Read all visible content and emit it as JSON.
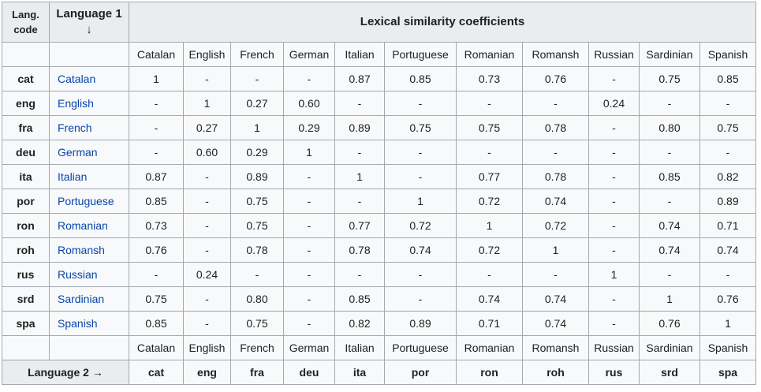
{
  "colors": {
    "header_bg": "#eaecf0",
    "cell_bg": "#f8f9fa",
    "border": "#a2a9b1",
    "link": "#0645ad",
    "text": "#202122"
  },
  "table": {
    "corner_header": {
      "line1": "Lang.",
      "line2": "code"
    },
    "language1_header": {
      "label": "Language 1",
      "arrow": "↓"
    },
    "coefficients_header": "Lexical similarity coefficients",
    "columns": [
      "Catalan",
      "English",
      "French",
      "German",
      "Italian",
      "Portuguese",
      "Romanian",
      "Romansh",
      "Russian",
      "Sardinian",
      "Spanish"
    ],
    "codes": [
      "cat",
      "eng",
      "fra",
      "deu",
      "ita",
      "por",
      "ron",
      "roh",
      "rus",
      "srd",
      "spa"
    ],
    "rows": [
      {
        "code": "cat",
        "language": "Catalan",
        "values": [
          "1",
          "-",
          "-",
          "-",
          "0.87",
          "0.85",
          "0.73",
          "0.76",
          "-",
          "0.75",
          "0.85"
        ]
      },
      {
        "code": "eng",
        "language": "English",
        "values": [
          "-",
          "1",
          "0.27",
          "0.60",
          "-",
          "-",
          "-",
          "-",
          "0.24",
          "-",
          "-"
        ]
      },
      {
        "code": "fra",
        "language": "French",
        "values": [
          "-",
          "0.27",
          "1",
          "0.29",
          "0.89",
          "0.75",
          "0.75",
          "0.78",
          "-",
          "0.80",
          "0.75"
        ]
      },
      {
        "code": "deu",
        "language": "German",
        "values": [
          "-",
          "0.60",
          "0.29",
          "1",
          "-",
          "-",
          "-",
          "-",
          "-",
          "-",
          "-"
        ]
      },
      {
        "code": "ita",
        "language": "Italian",
        "values": [
          "0.87",
          "-",
          "0.89",
          "-",
          "1",
          "-",
          "0.77",
          "0.78",
          "-",
          "0.85",
          "0.82"
        ]
      },
      {
        "code": "por",
        "language": "Portuguese",
        "values": [
          "0.85",
          "-",
          "0.75",
          "-",
          "-",
          "1",
          "0.72",
          "0.74",
          "-",
          "-",
          "0.89"
        ]
      },
      {
        "code": "ron",
        "language": "Romanian",
        "values": [
          "0.73",
          "-",
          "0.75",
          "-",
          "0.77",
          "0.72",
          "1",
          "0.72",
          "-",
          "0.74",
          "0.71"
        ]
      },
      {
        "code": "roh",
        "language": "Romansh",
        "values": [
          "0.76",
          "-",
          "0.78",
          "-",
          "0.78",
          "0.74",
          "0.72",
          "1",
          "-",
          "0.74",
          "0.74"
        ]
      },
      {
        "code": "rus",
        "language": "Russian",
        "values": [
          "-",
          "0.24",
          "-",
          "-",
          "-",
          "-",
          "-",
          "-",
          "1",
          "-",
          "-"
        ]
      },
      {
        "code": "srd",
        "language": "Sardinian",
        "values": [
          "0.75",
          "-",
          "0.80",
          "-",
          "0.85",
          "-",
          "0.74",
          "0.74",
          "-",
          "1",
          "0.76"
        ]
      },
      {
        "code": "spa",
        "language": "Spanish",
        "values": [
          "0.85",
          "-",
          "0.75",
          "-",
          "0.82",
          "0.89",
          "0.71",
          "0.74",
          "-",
          "0.76",
          "1"
        ]
      }
    ],
    "language2_header": {
      "label": "Language 2",
      "arrow": "→"
    }
  }
}
